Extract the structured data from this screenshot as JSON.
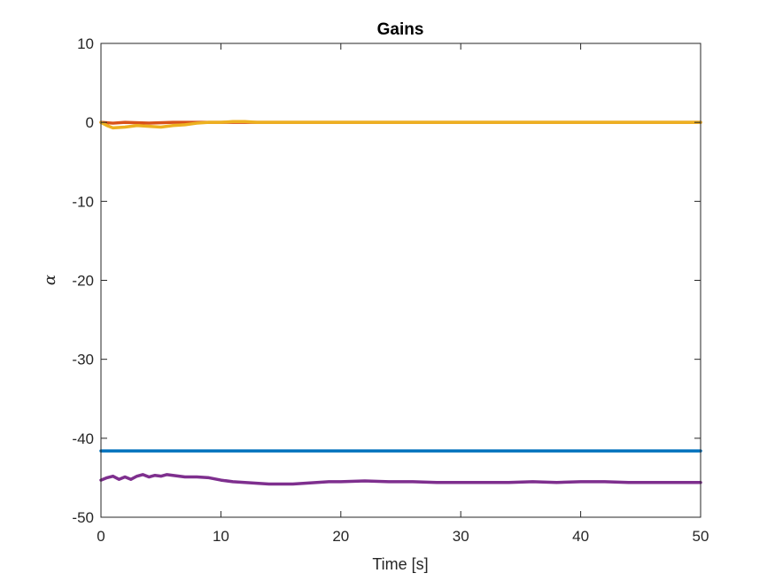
{
  "chart_data": {
    "type": "line",
    "title": "Gains",
    "xlabel": "Time [s]",
    "ylabel": "α",
    "xlim": [
      0,
      50
    ],
    "ylim": [
      -50,
      10
    ],
    "xticks": [
      0,
      10,
      20,
      30,
      40,
      50
    ],
    "xtick_labels": [
      "0",
      "10",
      "20",
      "30",
      "40",
      "50"
    ],
    "yticks": [
      10,
      0,
      -10,
      -20,
      -30,
      -40,
      -50
    ],
    "ytick_labels": [
      "10",
      "0",
      "-10",
      "-20",
      "-30",
      "-40",
      "-50"
    ],
    "grid": false,
    "legend": false,
    "series": [
      {
        "color": "#0072BD",
        "x": [
          0,
          5,
          10,
          15,
          20,
          25,
          30,
          35,
          40,
          45,
          50
        ],
        "y": [
          -41.6,
          -41.6,
          -41.6,
          -41.6,
          -41.6,
          -41.6,
          -41.6,
          -41.6,
          -41.6,
          -41.6,
          -41.6
        ]
      },
      {
        "color": "#D95319",
        "x": [
          0,
          1,
          2,
          4,
          6,
          8,
          10,
          15,
          20,
          30,
          40,
          50
        ],
        "y": [
          0,
          -0.1,
          0,
          -0.1,
          0,
          0,
          0,
          0,
          0,
          0,
          0,
          0
        ]
      },
      {
        "color": "#EDB120",
        "x": [
          0,
          0.5,
          1,
          2,
          3,
          4,
          5,
          6,
          7,
          8,
          9,
          10,
          11,
          12,
          13,
          15,
          20,
          25,
          30,
          35,
          40,
          45,
          50
        ],
        "y": [
          0,
          -0.4,
          -0.7,
          -0.6,
          -0.4,
          -0.5,
          -0.6,
          -0.4,
          -0.3,
          -0.1,
          0,
          0,
          0.1,
          0.1,
          0,
          0,
          0,
          0,
          0,
          0,
          0,
          0,
          0
        ]
      },
      {
        "color": "#7E2F8E",
        "x": [
          0,
          0.5,
          1,
          1.5,
          2,
          2.5,
          3,
          3.5,
          4,
          4.5,
          5,
          5.5,
          6,
          7,
          8,
          9,
          10,
          11,
          12,
          13,
          14,
          15,
          16,
          17,
          18,
          19,
          20,
          22,
          24,
          26,
          28,
          30,
          32,
          34,
          36,
          38,
          40,
          42,
          44,
          46,
          48,
          50
        ],
        "y": [
          -45.3,
          -45.0,
          -44.8,
          -45.2,
          -44.9,
          -45.2,
          -44.8,
          -44.6,
          -44.9,
          -44.7,
          -44.8,
          -44.6,
          -44.7,
          -44.9,
          -44.9,
          -45.0,
          -45.3,
          -45.5,
          -45.6,
          -45.7,
          -45.8,
          -45.8,
          -45.8,
          -45.7,
          -45.6,
          -45.5,
          -45.5,
          -45.4,
          -45.5,
          -45.5,
          -45.6,
          -45.6,
          -45.6,
          -45.6,
          -45.5,
          -45.6,
          -45.5,
          -45.5,
          -45.6,
          -45.6,
          -45.6,
          -45.6
        ]
      }
    ]
  }
}
